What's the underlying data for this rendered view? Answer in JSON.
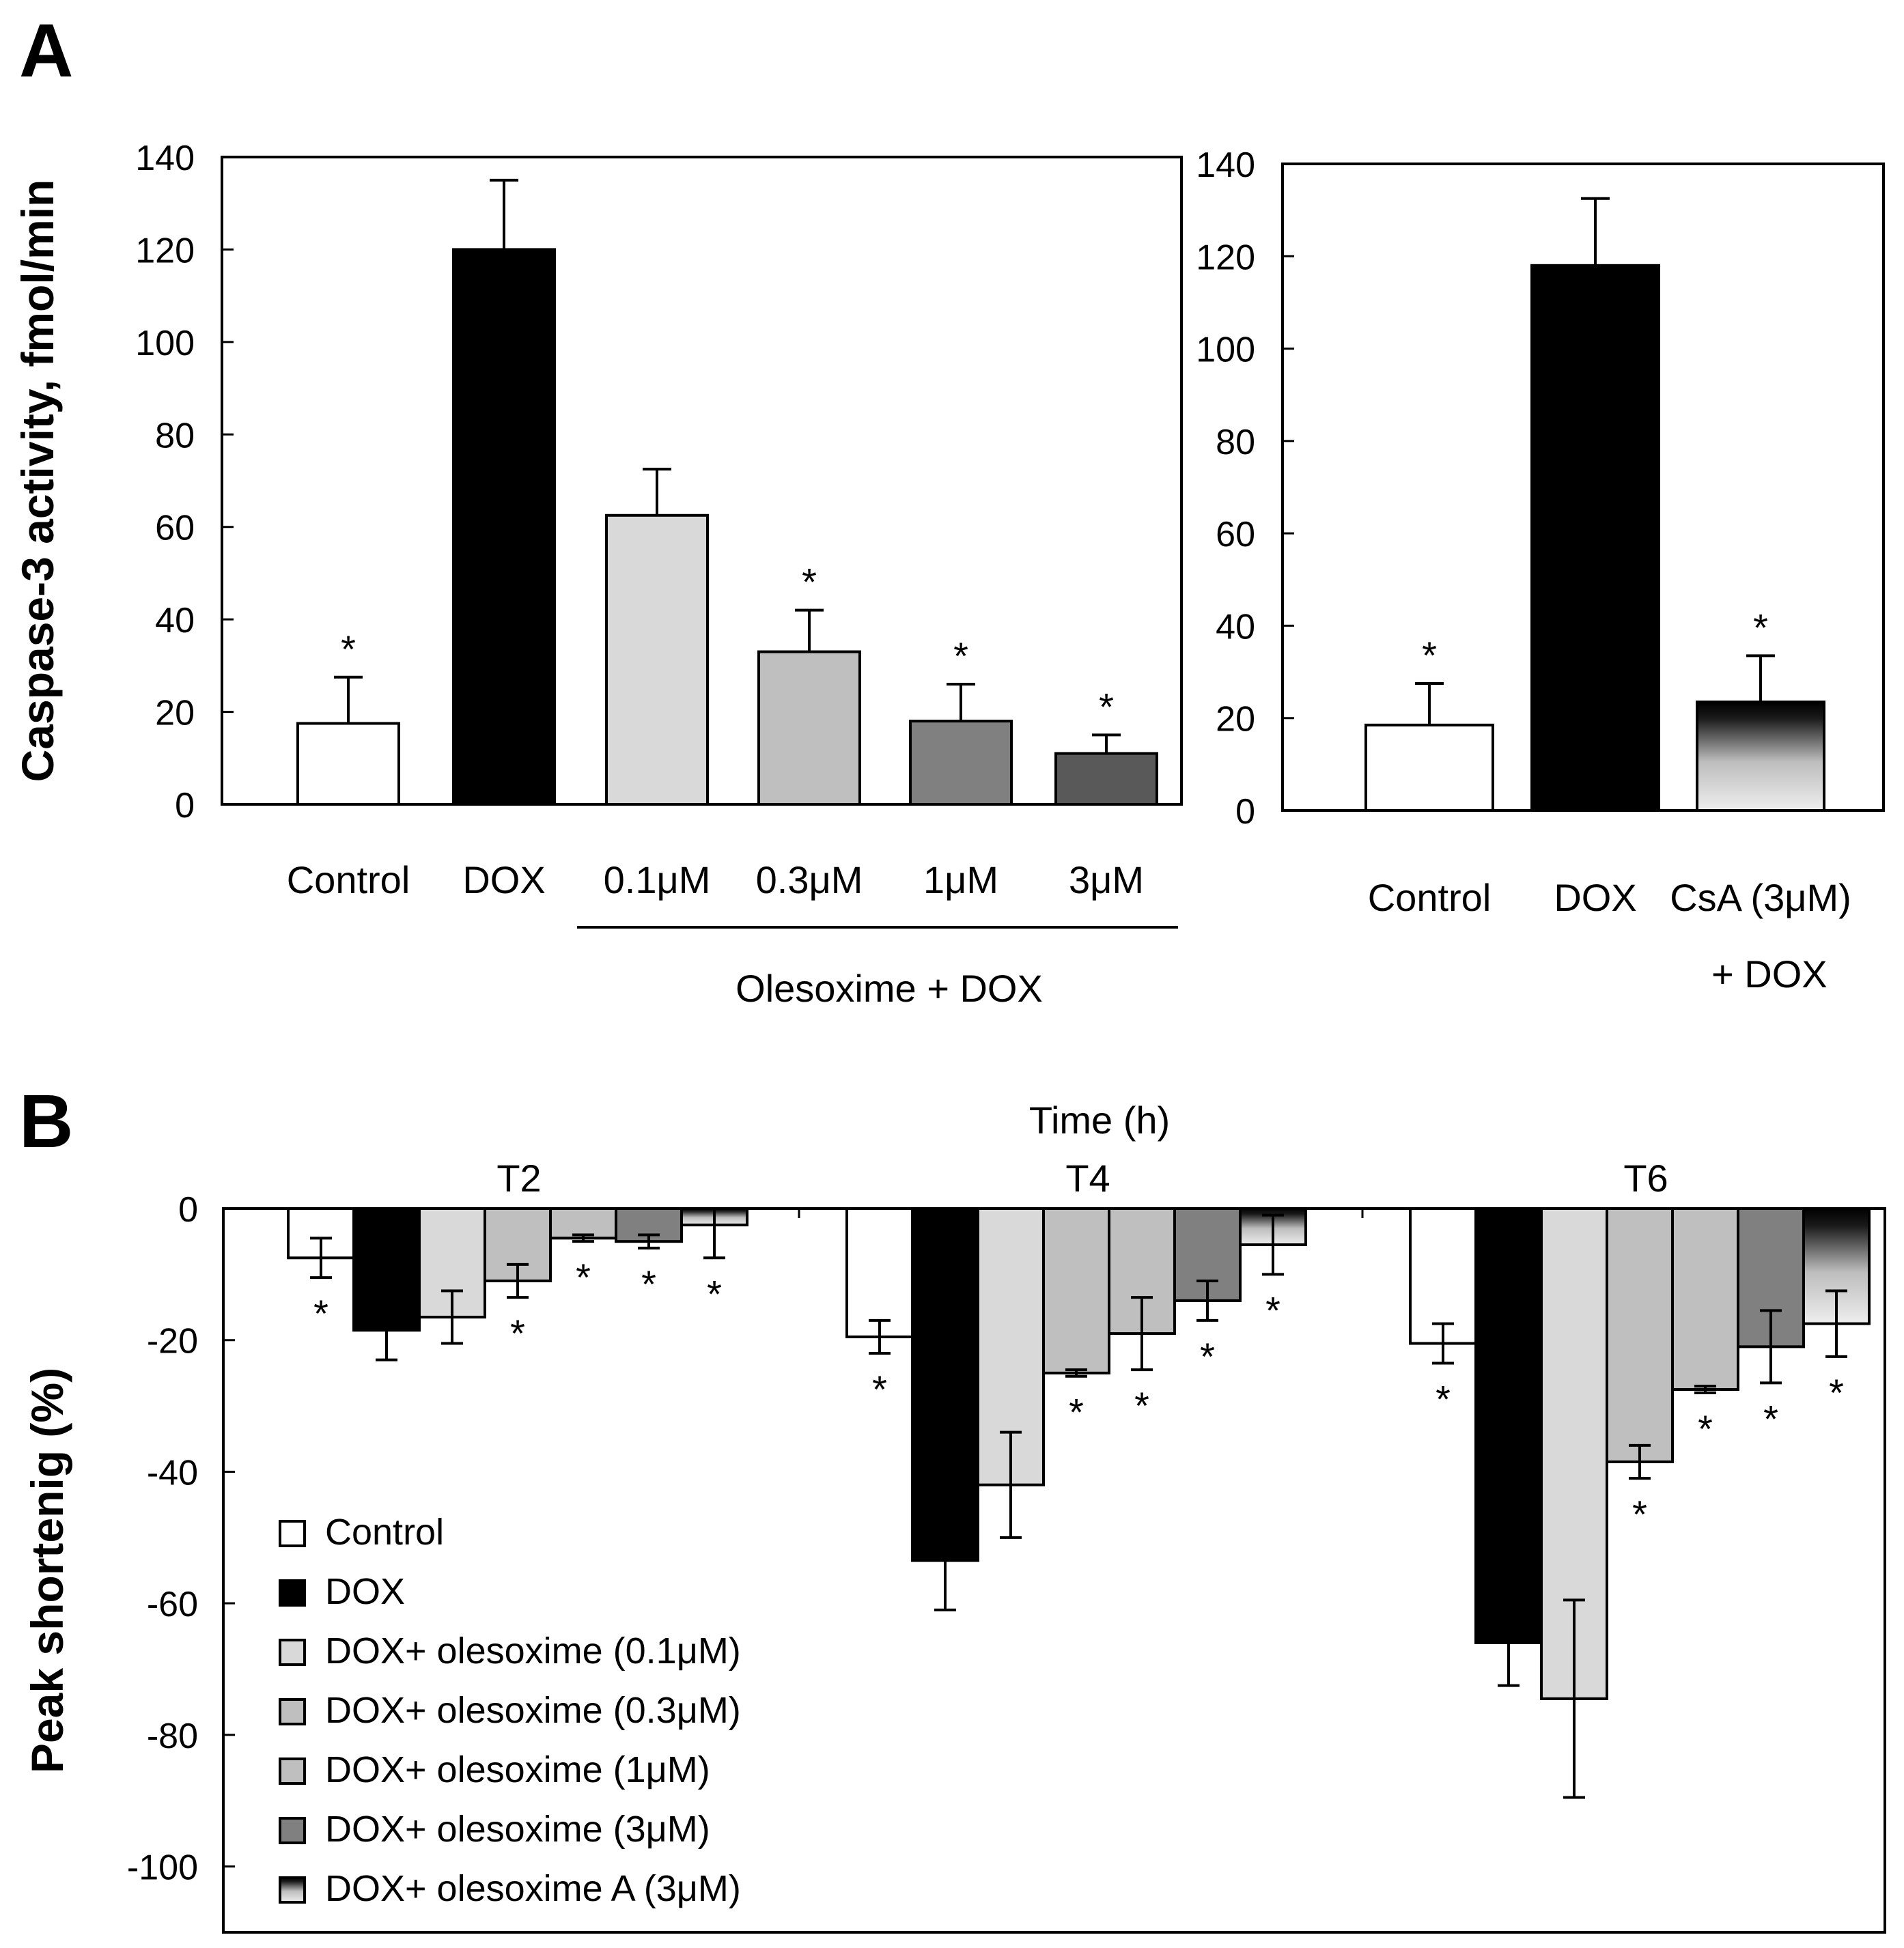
{
  "panels": {
    "a": {
      "letter": "A"
    },
    "b": {
      "letter": "B"
    }
  },
  "colors": {
    "control": "#ffffff",
    "dox": "#000000",
    "ole_0_1": "#d9d9d9",
    "ole_0_3": "#bfbfbf",
    "ole_1": "#808080",
    "ole_3": "#595959",
    "gradient_dark": "#000000",
    "gradient_light": "#e8e8e8"
  },
  "chart_data": [
    {
      "id": "A_left",
      "type": "bar",
      "ylabel": "Caspase-3 activity, fmol/min",
      "ylim": [
        0,
        140
      ],
      "yticks": [
        0,
        20,
        40,
        60,
        80,
        100,
        120,
        140
      ],
      "categories": [
        "Control",
        "DOX",
        "0.1μM",
        "0.3μM",
        "1μM",
        "3μM"
      ],
      "group_label": "Olesoxime + DOX",
      "values": [
        17.5,
        120,
        62.5,
        33,
        18,
        11
      ],
      "errors": [
        10,
        15,
        10,
        9,
        8,
        4
      ],
      "significance": [
        "*",
        "",
        "",
        "*",
        "*",
        "*"
      ],
      "fills": [
        "control",
        "dox",
        "ole_0_1",
        "ole_0_3",
        "ole_1",
        "ole_3"
      ]
    },
    {
      "id": "A_right",
      "type": "bar",
      "ylim": [
        0,
        140
      ],
      "yticks": [
        0,
        20,
        40,
        60,
        80,
        100,
        120,
        140
      ],
      "categories": [
        "Control",
        "DOX",
        "CsA (3μM)"
      ],
      "category_line2": [
        "",
        "",
        "+ DOX"
      ],
      "values": [
        18.5,
        118,
        23.5
      ],
      "errors": [
        9,
        14.5,
        10
      ],
      "significance": [
        "*",
        "",
        "*"
      ],
      "fills": [
        "control",
        "dox",
        "gradient"
      ]
    },
    {
      "id": "B",
      "type": "bar",
      "title": "Time (h)",
      "ylabel": "Peak shortenig (%)",
      "ylim": [
        -110,
        0
      ],
      "yticks": [
        0,
        -20,
        -40,
        -60,
        -80,
        -100
      ],
      "groups": [
        "T2",
        "T4",
        "T6"
      ],
      "series": [
        {
          "name": "Control",
          "fill": "control",
          "values": [
            -7.5,
            -19.5,
            -20.5
          ],
          "errors": [
            3,
            2.5,
            3
          ],
          "significance": [
            "*",
            "*",
            "*"
          ]
        },
        {
          "name": "DOX",
          "fill": "dox",
          "values": [
            -18.5,
            -53.5,
            -66
          ],
          "errors": [
            4.5,
            7.5,
            6.5
          ],
          "significance": [
            "",
            "",
            ""
          ]
        },
        {
          "name": "DOX+ olesoxime (0.1μM)",
          "fill": "ole_0_1",
          "values": [
            -16.5,
            -42,
            -74.5
          ],
          "errors": [
            4,
            8,
            15
          ],
          "significance": [
            "",
            "",
            ""
          ]
        },
        {
          "name": "DOX+ olesoxime (0.3μM)",
          "fill": "ole_0_3",
          "values": [
            -11,
            -25,
            -38.5
          ],
          "errors": [
            2.5,
            0.5,
            2.5
          ],
          "significance": [
            "*",
            "*",
            "*"
          ]
        },
        {
          "name": "DOX+ olesoxime (1μM)",
          "fill": "ole_0_3",
          "values": [
            -4.5,
            -19,
            -27.5
          ],
          "errors": [
            0.5,
            5.5,
            0.5
          ],
          "significance": [
            "*",
            "*",
            "*"
          ]
        },
        {
          "name": "DOX+ olesoxime (3μM)",
          "fill": "ole_1",
          "values": [
            -5,
            -14,
            -21
          ],
          "errors": [
            1,
            3,
            5.5
          ],
          "significance": [
            "*",
            "*",
            "*"
          ]
        },
        {
          "name": "DOX+ olesoxime A (3μM)",
          "fill": "gradient",
          "values": [
            -2.5,
            -5.5,
            -17.5
          ],
          "errors": [
            5,
            4.5,
            5
          ],
          "significance": [
            "*",
            "*",
            "*"
          ]
        }
      ]
    }
  ]
}
